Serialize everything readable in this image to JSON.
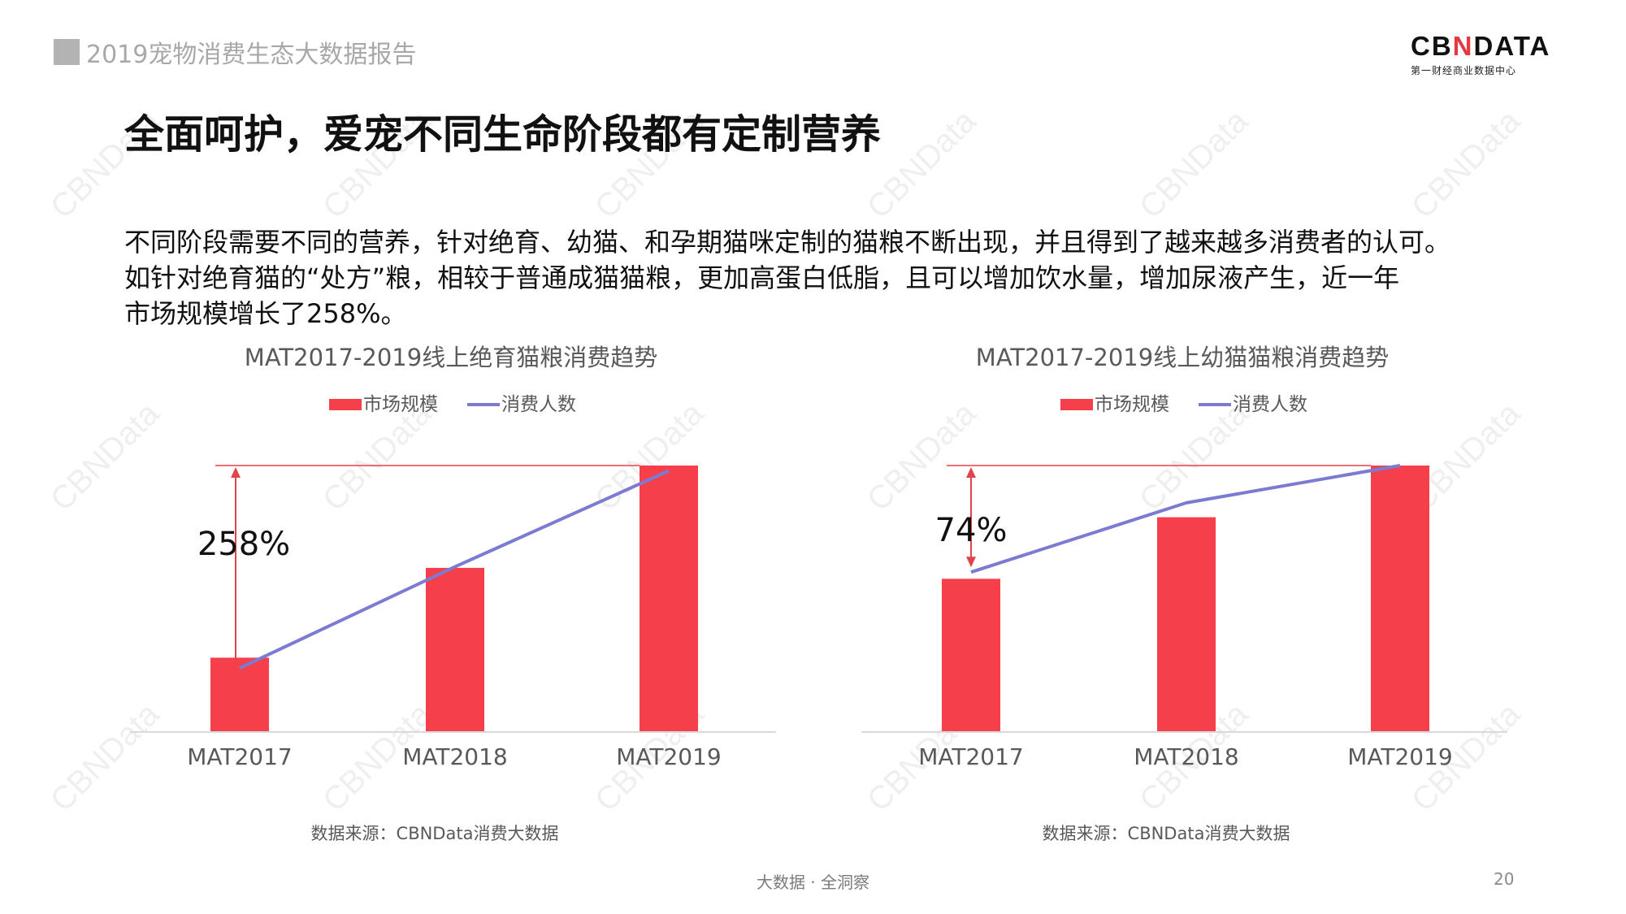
{
  "header": {
    "report_title": "2019宠物消费生态大数据报告",
    "logo_text_a": "CB",
    "logo_text_n": "N",
    "logo_text_b": "DATA",
    "logo_sub": "第一财经商业数据中心"
  },
  "page_title": "全面呵护，爱宠不同生命阶段都有定制营养",
  "description": {
    "line1": "不同阶段需要不同的营养，针对绝育、幼猫、和孕期猫咪定制的猫粮不断出现，并且得到了越来越多消费者的认可。",
    "line2": "如针对绝育猫的“处方”粮，相较于普通成猫猫粮，更加高蛋白低脂，且可以增加饮水量，增加尿液产生，近一年",
    "line3": "市场规模增长了258%。"
  },
  "watermark_text": "CBNData",
  "colors": {
    "bar": "#f5404b",
    "line": "#7b7bd1",
    "annotation": "#e0444c",
    "axis": "#d9d9d9"
  },
  "chart_data": [
    {
      "type": "bar",
      "title": "MAT2017-2019线上绝育猫粮消费趋势",
      "categories": [
        "MAT2017",
        "MAT2018",
        "MAT2019"
      ],
      "series": [
        {
          "name": "市场规模",
          "type": "bar",
          "values": [
            27.9,
            61.6,
            100
          ]
        },
        {
          "name": "消费人数",
          "type": "line",
          "values": [
            24,
            62,
            98
          ]
        }
      ],
      "ylim": [
        0,
        100
      ],
      "grid": false,
      "legend": "top",
      "annotation": "258%",
      "source": "数据来源：CBNData消费大数据"
    },
    {
      "type": "bar",
      "title": "MAT2017-2019线上幼猫猫粮消费趋势",
      "categories": [
        "MAT2017",
        "MAT2018",
        "MAT2019"
      ],
      "series": [
        {
          "name": "市场规模",
          "type": "bar",
          "values": [
            57.5,
            80.6,
            100
          ]
        },
        {
          "name": "消费人数",
          "type": "line",
          "values": [
            60,
            86,
            100
          ]
        }
      ],
      "ylim": [
        0,
        100
      ],
      "grid": false,
      "legend": "top",
      "annotation": "74%",
      "source": "数据来源：CBNData消费大数据"
    }
  ],
  "footer": {
    "slogan": "大数据 · 全洞察",
    "page_number": "20"
  }
}
